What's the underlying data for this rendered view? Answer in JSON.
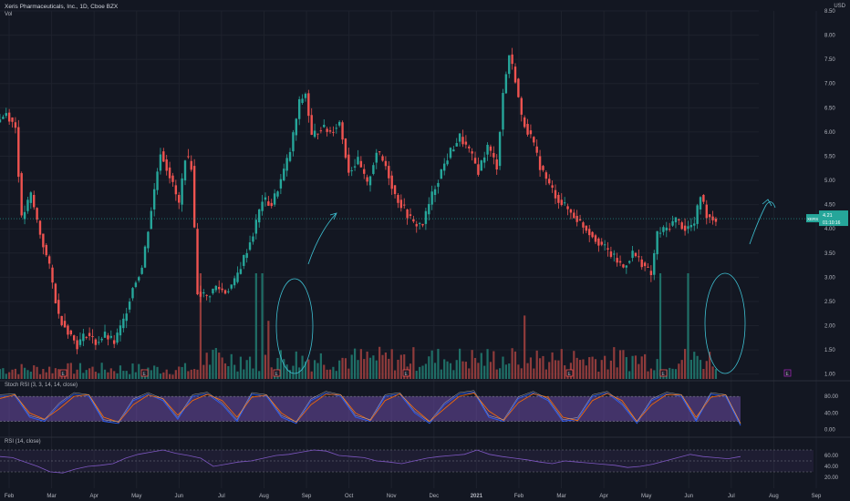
{
  "chart_data": [
    {
      "type": "candlestick",
      "title": "Xeris Pharmaceuticals, Inc., 1D, Cboe BZX",
      "sub_label": "Vol",
      "currency": "USD",
      "y_ticks": [
        "8.50",
        "8.00",
        "7.50",
        "7.00",
        "6.50",
        "6.00",
        "5.50",
        "5.00",
        "4.50",
        "4.00",
        "3.50",
        "3.00",
        "2.50",
        "2.00",
        "1.50",
        "1.00"
      ],
      "ylim": [
        0.9,
        8.5
      ],
      "x_ticks": [
        "Feb",
        "Mar",
        "Apr",
        "May",
        "Jun",
        "Jul",
        "Aug",
        "Sep",
        "Oct",
        "Nov",
        "Dec",
        "2021",
        "Feb",
        "Mar",
        "Apr",
        "May",
        "Jun",
        "Jul",
        "Aug",
        "Sep"
      ],
      "x_tick_bold": "2021",
      "price_trace": [
        {
          "t": 0,
          "v": 6.2
        },
        {
          "t": 3,
          "v": 6.4
        },
        {
          "t": 6,
          "v": 6.1
        },
        {
          "t": 8,
          "v": 4.2
        },
        {
          "t": 11,
          "v": 4.7
        },
        {
          "t": 14,
          "v": 3.9
        },
        {
          "t": 17,
          "v": 3.2
        },
        {
          "t": 20,
          "v": 2.2
        },
        {
          "t": 23,
          "v": 1.9
        },
        {
          "t": 26,
          "v": 1.6
        },
        {
          "t": 29,
          "v": 1.85
        },
        {
          "t": 32,
          "v": 1.65
        },
        {
          "t": 35,
          "v": 1.8
        },
        {
          "t": 38,
          "v": 1.65
        },
        {
          "t": 41,
          "v": 2.1
        },
        {
          "t": 44,
          "v": 2.8
        },
        {
          "t": 47,
          "v": 3.2
        },
        {
          "t": 50,
          "v": 4.4
        },
        {
          "t": 53,
          "v": 5.6
        },
        {
          "t": 56,
          "v": 5.1
        },
        {
          "t": 59,
          "v": 4.5
        },
        {
          "t": 61,
          "v": 5.5
        },
        {
          "t": 63,
          "v": 5.3
        },
        {
          "t": 65,
          "v": 2.7
        },
        {
          "t": 68,
          "v": 2.6
        },
        {
          "t": 71,
          "v": 2.8
        },
        {
          "t": 74,
          "v": 2.7
        },
        {
          "t": 77,
          "v": 2.9
        },
        {
          "t": 80,
          "v": 3.4
        },
        {
          "t": 83,
          "v": 3.9
        },
        {
          "t": 86,
          "v": 4.6
        },
        {
          "t": 89,
          "v": 4.5
        },
        {
          "t": 92,
          "v": 5.0
        },
        {
          "t": 95,
          "v": 5.6
        },
        {
          "t": 98,
          "v": 6.6
        },
        {
          "t": 100,
          "v": 6.8
        },
        {
          "t": 102,
          "v": 5.9
        },
        {
          "t": 105,
          "v": 6.1
        },
        {
          "t": 108,
          "v": 6.0
        },
        {
          "t": 111,
          "v": 6.2
        },
        {
          "t": 114,
          "v": 5.2
        },
        {
          "t": 117,
          "v": 5.4
        },
        {
          "t": 120,
          "v": 4.9
        },
        {
          "t": 123,
          "v": 5.6
        },
        {
          "t": 126,
          "v": 5.3
        },
        {
          "t": 129,
          "v": 4.7
        },
        {
          "t": 132,
          "v": 4.4
        },
        {
          "t": 135,
          "v": 4.1
        },
        {
          "t": 138,
          "v": 4.1
        },
        {
          "t": 141,
          "v": 4.7
        },
        {
          "t": 144,
          "v": 5.2
        },
        {
          "t": 147,
          "v": 5.6
        },
        {
          "t": 150,
          "v": 5.9
        },
        {
          "t": 153,
          "v": 5.6
        },
        {
          "t": 156,
          "v": 5.2
        },
        {
          "t": 159,
          "v": 5.7
        },
        {
          "t": 162,
          "v": 5.3
        },
        {
          "t": 164,
          "v": 6.8
        },
        {
          "t": 166,
          "v": 7.6
        },
        {
          "t": 168,
          "v": 7.1
        },
        {
          "t": 170,
          "v": 6.3
        },
        {
          "t": 173,
          "v": 5.9
        },
        {
          "t": 176,
          "v": 5.3
        },
        {
          "t": 179,
          "v": 4.9
        },
        {
          "t": 182,
          "v": 4.6
        },
        {
          "t": 185,
          "v": 4.4
        },
        {
          "t": 188,
          "v": 4.2
        },
        {
          "t": 191,
          "v": 4.0
        },
        {
          "t": 194,
          "v": 3.8
        },
        {
          "t": 197,
          "v": 3.6
        },
        {
          "t": 200,
          "v": 3.4
        },
        {
          "t": 203,
          "v": 3.2
        },
        {
          "t": 206,
          "v": 3.5
        },
        {
          "t": 209,
          "v": 3.3
        },
        {
          "t": 212,
          "v": 3.05
        },
        {
          "t": 214,
          "v": 3.9
        },
        {
          "t": 217,
          "v": 4.0
        },
        {
          "t": 220,
          "v": 4.2
        },
        {
          "t": 223,
          "v": 4.0
        },
        {
          "t": 226,
          "v": 4.1
        },
        {
          "t": 228,
          "v": 4.7
        },
        {
          "t": 230,
          "v": 4.3
        },
        {
          "t": 232,
          "v": 4.21
        }
      ],
      "last_price": {
        "symbol": "XERS",
        "value": "4.21",
        "countdown": "01:10:16"
      },
      "volume_spikes": [
        {
          "t": 65,
          "v": 1.0
        },
        {
          "t": 83,
          "v": 1.0
        },
        {
          "t": 85,
          "v": 1.0
        },
        {
          "t": 87,
          "v": 0.55
        },
        {
          "t": 170,
          "v": 0.6
        },
        {
          "t": 214,
          "v": 1.0
        },
        {
          "t": 223,
          "v": 1.0
        }
      ],
      "event_markers": [
        "E",
        "E",
        "E",
        "E",
        "E",
        "E",
        "E",
        "E"
      ],
      "up_color": "#26a69a",
      "down_color": "#ef5350"
    },
    {
      "type": "line",
      "title": "Stoch RSI (3, 3, 14, 14, close)",
      "y_ticks": [
        "80.00",
        "40.00",
        "0.00"
      ],
      "ylim": [
        -5,
        100
      ],
      "bands": [
        20,
        80
      ],
      "series": [
        {
          "color": "#2962ff",
          "values": [
            80,
            82,
            30,
            20,
            60,
            85,
            80,
            20,
            15,
            70,
            85,
            70,
            25,
            80,
            86,
            60,
            20,
            85,
            80,
            30,
            15,
            70,
            88,
            80,
            30,
            20,
            80,
            85,
            40,
            15,
            60,
            85,
            90,
            30,
            20,
            75,
            88,
            70,
            20,
            25,
            80,
            88,
            60,
            15,
            70,
            86,
            80,
            20,
            85,
            80,
            10
          ]
        },
        {
          "color": "#ff6d00",
          "values": [
            75,
            84,
            40,
            25,
            50,
            80,
            84,
            30,
            18,
            60,
            83,
            75,
            35,
            70,
            85,
            70,
            30,
            78,
            83,
            40,
            18,
            60,
            85,
            84,
            40,
            22,
            70,
            86,
            50,
            20,
            50,
            80,
            88,
            45,
            22,
            65,
            86,
            78,
            30,
            22,
            70,
            87,
            70,
            20,
            60,
            84,
            84,
            30,
            78,
            84,
            15
          ]
        }
      ],
      "line_color": "#b2b5be"
    },
    {
      "type": "line",
      "title": "RSI (14, close)",
      "y_ticks": [
        "60.00",
        "40.00",
        "20.00"
      ],
      "ylim": [
        10,
        80
      ],
      "bands": [
        30,
        70
      ],
      "series": [
        {
          "color": "#7e57c2",
          "values": [
            58,
            56,
            48,
            40,
            30,
            28,
            35,
            40,
            42,
            45,
            55,
            62,
            66,
            70,
            64,
            60,
            55,
            40,
            44,
            48,
            50,
            55,
            60,
            62,
            66,
            70,
            68,
            60,
            58,
            56,
            50,
            48,
            45,
            50,
            55,
            58,
            60,
            62,
            70,
            62,
            58,
            55,
            52,
            48,
            45,
            50,
            48,
            46,
            44,
            42,
            38,
            40,
            44,
            50,
            56,
            62,
            58,
            56,
            54,
            58
          ]
        }
      ],
      "band_fill": "rgba(126,87,194,0.10)"
    }
  ]
}
